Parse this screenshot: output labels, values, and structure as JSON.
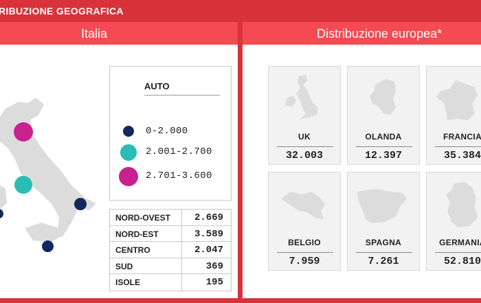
{
  "header": {
    "title": "RIBUZIONE GEOGRAFICA"
  },
  "italy": {
    "title": "Italia",
    "legend": {
      "title": "AUTO",
      "items": [
        {
          "label": "0-2.000",
          "color": "#14285e"
        },
        {
          "label": "2.001-2.700",
          "color": "#2abdb4"
        },
        {
          "label": "2.701-3.600",
          "color": "#c7228f"
        }
      ]
    },
    "regions": [
      {
        "name": "NORD-OVEST",
        "value": "2.669"
      },
      {
        "name": "NORD-EST",
        "value": "3.589"
      },
      {
        "name": "CENTRO",
        "value": "2.047"
      },
      {
        "name": "SUD",
        "value": "369"
      },
      {
        "name": "ISOLE",
        "value": "195"
      }
    ]
  },
  "europe": {
    "title": "Distribuzione europea*",
    "countries": [
      {
        "name": "UK",
        "value": "32.003",
        "icon": "uk-map-icon"
      },
      {
        "name": "OLANDA",
        "value": "12.397",
        "icon": "netherlands-map-icon"
      },
      {
        "name": "FRANCIA",
        "value": "35.384",
        "icon": "france-map-icon"
      },
      {
        "name": "BELGIO",
        "value": "7.959",
        "icon": "belgium-map-icon"
      },
      {
        "name": "SPAGNA",
        "value": "7.261",
        "icon": "spain-map-icon"
      },
      {
        "name": "GERMANIA",
        "value": "52.810",
        "icon": "germany-map-icon"
      }
    ]
  },
  "colors": {
    "frame": "#d8323a",
    "panel_header": "#f44a52",
    "map_fill": "#dcdcdc",
    "card_bg": "#f2f2f2"
  }
}
